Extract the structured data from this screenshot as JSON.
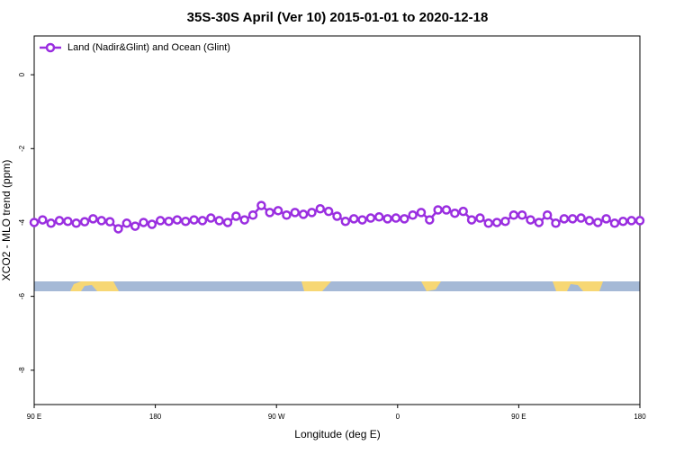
{
  "chart_data": {
    "type": "line",
    "title": "35S-30S April (Ver 10)   2015-01-01 to 2020-12-18",
    "x_label": "Longitude (deg E)",
    "y_label": "XCO2 - MLO trend (ppm)",
    "xlim": [
      90,
      540
    ],
    "ylim": [
      -8.93,
      1.05
    ],
    "xticks": [
      {
        "value": 90,
        "label": "90 E"
      },
      180,
      {
        "value": 270,
        "label": "90 W"
      },
      {
        "value": 360,
        "label": "0"
      },
      {
        "value": 450,
        "label": "90 E"
      },
      {
        "value": 540,
        "label": "180"
      }
    ],
    "yticks": [
      0,
      -2,
      -4,
      -6,
      -8
    ],
    "grid": false,
    "legend": "top-left",
    "x": [
      90,
      96.25,
      102.5,
      108.75,
      115,
      121.25,
      127.5,
      133.75,
      140,
      146.25,
      152.5,
      158.75,
      165,
      171.25,
      177.5,
      183.75,
      190,
      196.25,
      202.5,
      208.75,
      215,
      221.25,
      227.5,
      233.75,
      240,
      246.25,
      252.5,
      258.75,
      265,
      271.25,
      277.5,
      283.75,
      290,
      296.25,
      302.5,
      308.75,
      315,
      321.25,
      327.5,
      333.75,
      340,
      346.25,
      352.5,
      358.75,
      365,
      371.25,
      377.5,
      383.75,
      390,
      396.25,
      402.5,
      408.75,
      415,
      421.25,
      427.5,
      433.75,
      440,
      446.25,
      452.5,
      458.75,
      465,
      471.25,
      477.5,
      483.75,
      490,
      496.25,
      502.5,
      508.75,
      515,
      521.25,
      527.5,
      533.75,
      540
    ],
    "series": [
      {
        "name": "Land (Nadir&Glint) and Ocean (Glint)",
        "color": "#9a2ee0",
        "values": [
          -4.0,
          -3.93,
          -4.02,
          -3.95,
          -3.97,
          -4.02,
          -3.98,
          -3.9,
          -3.95,
          -3.98,
          -4.17,
          -4.02,
          -4.1,
          -4.0,
          -4.05,
          -3.95,
          -3.97,
          -3.93,
          -3.97,
          -3.93,
          -3.95,
          -3.88,
          -3.95,
          -4.0,
          -3.83,
          -3.93,
          -3.8,
          -3.54,
          -3.73,
          -3.68,
          -3.8,
          -3.73,
          -3.78,
          -3.73,
          -3.63,
          -3.7,
          -3.83,
          -3.97,
          -3.9,
          -3.93,
          -3.88,
          -3.85,
          -3.9,
          -3.88,
          -3.9,
          -3.8,
          -3.73,
          -3.93,
          -3.66,
          -3.66,
          -3.75,
          -3.7,
          -3.93,
          -3.88,
          -4.02,
          -4.0,
          -3.97,
          -3.8,
          -3.8,
          -3.93,
          -4.0,
          -3.8,
          -4.02,
          -3.9,
          -3.9,
          -3.88,
          -3.95,
          -4.0,
          -3.9,
          -4.02,
          -3.97,
          -3.95,
          -3.95
        ]
      }
    ]
  }
}
